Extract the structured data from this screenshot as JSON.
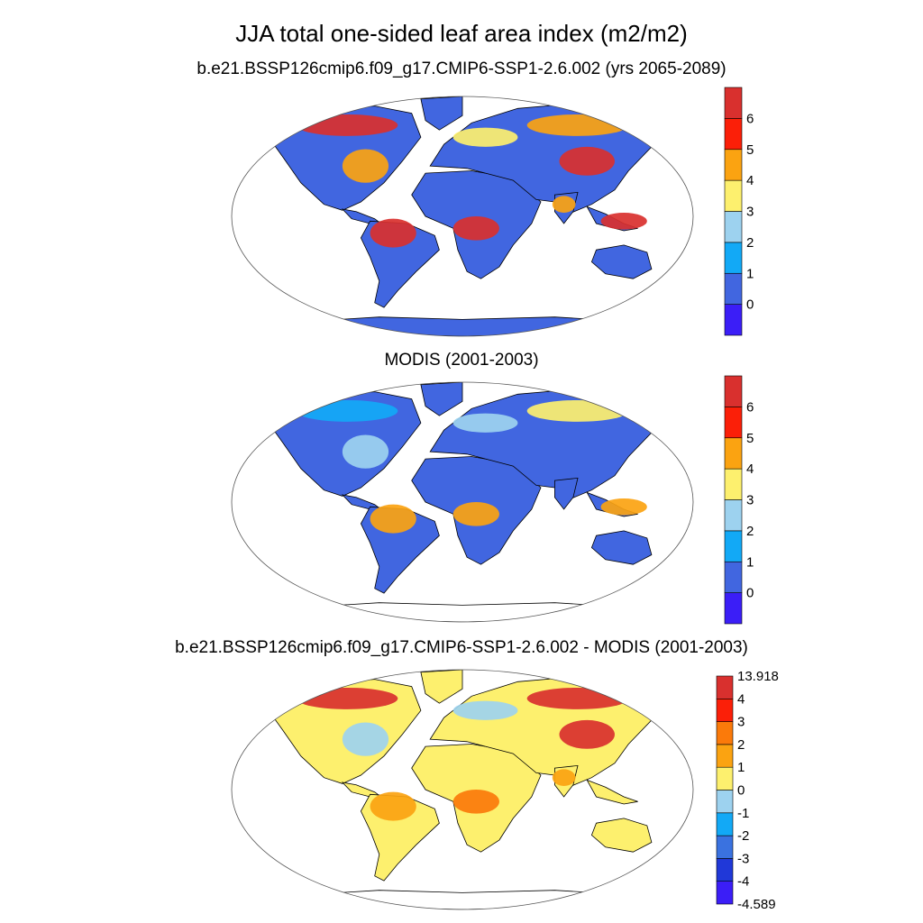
{
  "title": "JJA total one-sided leaf area index (m2/m2)",
  "panels": [
    {
      "id": "model",
      "subtitle": "b.e21.BSSP126cmip6.f09_g17.CMIP6-SSP1-2.6.002 (yrs 2065-2089)",
      "colorbar": {
        "colors": [
          "#3b1ef7",
          "#4166e0",
          "#12a9f6",
          "#9dd2ef",
          "#fdf06e",
          "#fba311",
          "#fb1f08",
          "#d9302e"
        ],
        "labels": [
          "0",
          "1",
          "2",
          "3",
          "4",
          "5",
          "6"
        ]
      },
      "land_fill": "#4166e0",
      "antarctica_fill": "#4166e0",
      "hotspots": [
        {
          "region": "Amazon",
          "value": "6+",
          "color": "#d9302e"
        },
        {
          "region": "Canada boreal",
          "value": "6+",
          "color": "#d9302e"
        },
        {
          "region": "Eastern North America",
          "value": "3-5",
          "color": "#fba311"
        },
        {
          "region": "Congo",
          "value": "6+",
          "color": "#d9302e"
        },
        {
          "region": "China",
          "value": "6+",
          "color": "#d9302e"
        },
        {
          "region": "Siberia",
          "value": "4-5",
          "color": "#fba311"
        },
        {
          "region": "Europe",
          "value": "3-4",
          "color": "#fdf06e"
        },
        {
          "region": "Southeast Asia",
          "value": "6+",
          "color": "#d9302e"
        },
        {
          "region": "India",
          "value": "4-5",
          "color": "#fba311"
        }
      ]
    },
    {
      "id": "obs",
      "subtitle": "MODIS (2001-2003)",
      "colorbar": {
        "colors": [
          "#3b1ef7",
          "#4166e0",
          "#12a9f6",
          "#9dd2ef",
          "#fdf06e",
          "#fba311",
          "#fb1f08",
          "#d9302e"
        ],
        "labels": [
          "0",
          "1",
          "2",
          "3",
          "4",
          "5",
          "6"
        ]
      },
      "land_fill": "#4166e0",
      "antarctica_fill": "#ffffff",
      "hotspots": [
        {
          "region": "Amazon",
          "value": "4-5",
          "color": "#fba311"
        },
        {
          "region": "Siberia",
          "value": "3-4",
          "color": "#fdf06e"
        },
        {
          "region": "Europe",
          "value": "2-3",
          "color": "#9dd2ef"
        },
        {
          "region": "Eastern North America",
          "value": "2-3",
          "color": "#9dd2ef"
        },
        {
          "region": "Congo",
          "value": "4-5",
          "color": "#fba311"
        },
        {
          "region": "Southeast Asia",
          "value": "4-5",
          "color": "#fba311"
        },
        {
          "region": "Canada boreal",
          "value": "1-2",
          "color": "#12a9f6"
        }
      ]
    },
    {
      "id": "diff",
      "subtitle": "b.e21.BSSP126cmip6.f09_g17.CMIP6-SSP1-2.6.002 - MODIS (2001-2003)",
      "colorbar": {
        "colors": [
          "#3b1ef7",
          "#2038d8",
          "#3a72e0",
          "#12a9f6",
          "#9dd2ef",
          "#fdf06e",
          "#fba311",
          "#fb7a0a",
          "#fb1f08",
          "#d9302e"
        ],
        "labels": [
          "-4.589",
          "-4",
          "-3",
          "-2",
          "-1",
          "0",
          "1",
          "2",
          "3",
          "4",
          "13.918"
        ]
      },
      "land_fill": "#fdf06e",
      "antarctica_fill": "#ffffff",
      "hotspots": [
        {
          "region": "Canada boreal",
          "value": "3-4+",
          "color": "#d9302e"
        },
        {
          "region": "Eastern North America",
          "value": "-1-0",
          "color": "#9dd2ef"
        },
        {
          "region": "Siberia",
          "value": "3-4+",
          "color": "#d9302e"
        },
        {
          "region": "China",
          "value": "3-4+",
          "color": "#d9302e"
        },
        {
          "region": "Amazon",
          "value": "1-2",
          "color": "#fba311"
        },
        {
          "region": "Congo",
          "value": "1-3",
          "color": "#fb7a0a"
        },
        {
          "region": "India",
          "value": "1-2",
          "color": "#fba311"
        },
        {
          "region": "Europe",
          "value": "-1-0",
          "color": "#9dd2ef"
        }
      ]
    }
  ]
}
